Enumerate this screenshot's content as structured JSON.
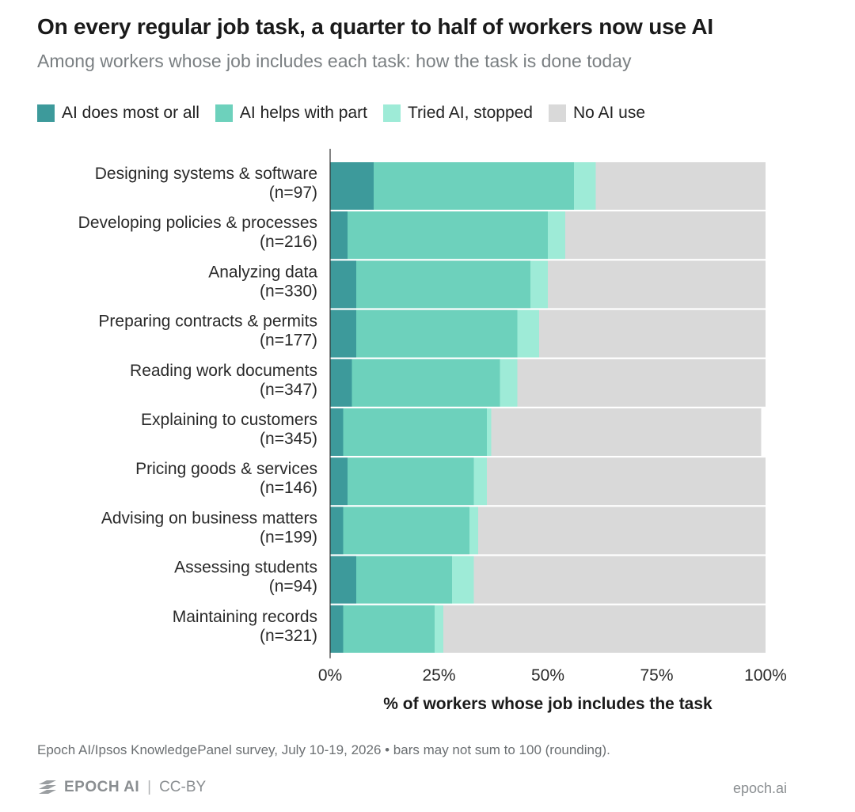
{
  "title": "On every regular job task, a quarter to half of workers now use AI",
  "subtitle": "Among workers whose job includes each task: how the task is done today",
  "legend": [
    {
      "label": "AI does most or all",
      "color": "#3d9a9b"
    },
    {
      "label": "AI helps with part",
      "color": "#6dd1bc"
    },
    {
      "label": "Tried AI, stopped",
      "color": "#9eebd7"
    },
    {
      "label": "No AI use",
      "color": "#d9d9d9"
    }
  ],
  "chart_data": {
    "type": "bar",
    "orientation": "horizontal",
    "stacked": true,
    "categories": [
      "Designing systems & software",
      "Developing policies & processes",
      "Analyzing data",
      "Preparing contracts & permits",
      "Reading work documents",
      "Explaining to customers",
      "Pricing goods & services",
      "Advising on business matters",
      "Assessing students",
      "Maintaining records"
    ],
    "sample_sizes": [
      "(n=97)",
      "(n=216)",
      "(n=330)",
      "(n=177)",
      "(n=347)",
      "(n=345)",
      "(n=146)",
      "(n=199)",
      "(n=94)",
      "(n=321)"
    ],
    "series": [
      {
        "name": "AI does most or all",
        "color": "#3d9a9b",
        "values": [
          10,
          4,
          6,
          6,
          5,
          3,
          4,
          3,
          6,
          3
        ]
      },
      {
        "name": "AI helps with part",
        "color": "#6dd1bc",
        "values": [
          46,
          46,
          40,
          37,
          34,
          33,
          29,
          29,
          22,
          21
        ]
      },
      {
        "name": "Tried AI, stopped",
        "color": "#9eebd7",
        "values": [
          5,
          4,
          4,
          5,
          4,
          1,
          3,
          2,
          5,
          2
        ]
      },
      {
        "name": "No AI use",
        "color": "#d9d9d9",
        "values": [
          39,
          46,
          50,
          52,
          57,
          62,
          64,
          66,
          67,
          74
        ]
      }
    ],
    "xlim": [
      0,
      100
    ],
    "xticks": [
      0,
      25,
      50,
      75,
      100
    ],
    "xtick_labels": [
      "0%",
      "25%",
      "50%",
      "75%",
      "100%"
    ],
    "xlabel": "% of workers whose job includes the task",
    "ylabel": "",
    "grid": false,
    "legend_position": "top-left"
  },
  "footer": {
    "source": "Epoch AI/Ipsos KnowledgePanel survey, July 10-19, 2026 • bars may not sum to 100 (rounding).",
    "brand": "EPOCH AI",
    "license": "CC-BY",
    "website": "epoch.ai"
  }
}
